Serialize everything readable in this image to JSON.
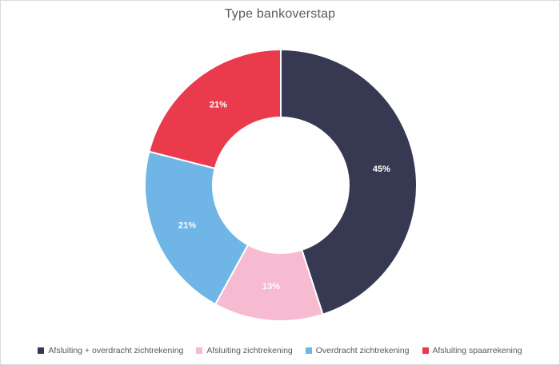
{
  "frame": {
    "background": "#ffffff",
    "border_color": "#dadada"
  },
  "chart_data": {
    "type": "pie",
    "subtype": "donut",
    "title": "Type bankoverstap",
    "title_color": "#595959",
    "direction": "clockwise",
    "start_angle_deg": 0,
    "inner_radius_ratio": 0.5,
    "legend_position": "bottom",
    "legend_text_color": "#595959",
    "data_label_color": "#ffffff",
    "segments": [
      {
        "label": "Afsluiting + overdracht zichtrekening",
        "value": 45,
        "data_label": "45%",
        "color": "#373852"
      },
      {
        "label": "Afsluiting zichtrekening",
        "value": 13,
        "data_label": "13%",
        "color": "#F6BAD1"
      },
      {
        "label": "Overdracht zichtrekening",
        "value": 21,
        "data_label": "21%",
        "color": "#6FB5E5"
      },
      {
        "label": "Afsluiting spaarrekening",
        "value": 21,
        "data_label": "21%",
        "color": "#EA3B4D"
      }
    ]
  }
}
